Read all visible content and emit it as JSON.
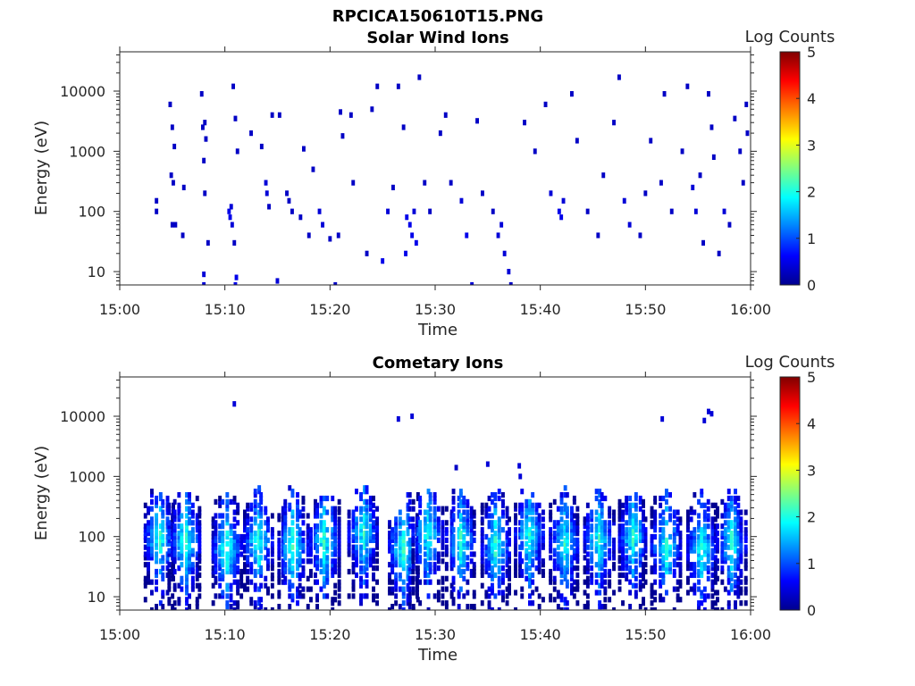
{
  "figure": {
    "title": "RPCICA150610T15.PNG"
  },
  "colors": {
    "colormap": [
      "#00008f",
      "#0000ff",
      "#0080ff",
      "#00ffff",
      "#80ff80",
      "#ffff00",
      "#ff8000",
      "#ff0000",
      "#800000"
    ],
    "axis": "#262626"
  },
  "chart_data": [
    {
      "type": "heatmap",
      "title": "Solar Wind Ions",
      "xlabel": "Time",
      "ylabel": "Energy (eV)",
      "xticks": [
        "15:00",
        "15:10",
        "15:20",
        "15:30",
        "15:40",
        "15:50",
        "16:00"
      ],
      "yscale": "log",
      "yticks": [
        10,
        100,
        1000,
        10000
      ],
      "ylim": [
        6,
        45000
      ],
      "colorbar": {
        "label": "Log Counts",
        "range": [
          0,
          5
        ],
        "ticks": [
          0,
          1,
          2,
          3,
          4,
          5
        ]
      },
      "activity": "sparse",
      "bursts_min": [],
      "points": [
        [
          3.5,
          150,
          0.3
        ],
        [
          3.5,
          100,
          0.3
        ],
        [
          4.8,
          6000,
          0.3
        ],
        [
          5.0,
          2500,
          0.3
        ],
        [
          5.2,
          1200,
          0.3
        ],
        [
          4.9,
          400,
          0.3
        ],
        [
          5.1,
          300,
          0.3
        ],
        [
          5.0,
          60,
          0.3
        ],
        [
          5.3,
          60,
          0.3
        ],
        [
          6.0,
          40,
          0.3
        ],
        [
          6.1,
          250,
          0.3
        ],
        [
          7.8,
          9000,
          0.3
        ],
        [
          7.9,
          2500,
          0.3
        ],
        [
          8.1,
          3000,
          0.3
        ],
        [
          8.2,
          1600,
          0.3
        ],
        [
          8.0,
          700,
          0.3
        ],
        [
          8.1,
          200,
          0.3
        ],
        [
          8.4,
          30,
          0.3
        ],
        [
          8.0,
          6,
          0.4
        ],
        [
          8.0,
          9,
          0.4
        ],
        [
          10.8,
          12000,
          0.3
        ],
        [
          11.0,
          3500,
          0.3
        ],
        [
          11.2,
          1000,
          0.3
        ],
        [
          10.4,
          100,
          0.5
        ],
        [
          10.5,
          80,
          0.5
        ],
        [
          10.6,
          120,
          0.4
        ],
        [
          10.7,
          60,
          0.4
        ],
        [
          10.9,
          30,
          0.3
        ],
        [
          11.1,
          8,
          0.5
        ],
        [
          11.0,
          6,
          0.5
        ],
        [
          12.5,
          2000,
          0.3
        ],
        [
          13.5,
          1200,
          0.3
        ],
        [
          13.9,
          300,
          0.4
        ],
        [
          14.0,
          200,
          0.4
        ],
        [
          14.2,
          120,
          0.3
        ],
        [
          14.5,
          4000,
          0.3
        ],
        [
          15.0,
          7,
          0.4
        ],
        [
          15.2,
          4000,
          0.3
        ],
        [
          15.9,
          200,
          0.3
        ],
        [
          16.1,
          150,
          0.3
        ],
        [
          16.4,
          100,
          0.3
        ],
        [
          17.2,
          80,
          0.3
        ],
        [
          17.5,
          1100,
          0.3
        ],
        [
          18.0,
          40,
          0.3
        ],
        [
          18.4,
          500,
          0.3
        ],
        [
          19.0,
          100,
          0.4
        ],
        [
          19.3,
          60,
          0.4
        ],
        [
          20.0,
          35,
          0.3
        ],
        [
          20.5,
          6,
          0.3
        ],
        [
          20.8,
          40,
          0.3
        ],
        [
          21.0,
          4500,
          0.3
        ],
        [
          21.2,
          1800,
          0.3
        ],
        [
          22.0,
          4000,
          0.3
        ],
        [
          22.2,
          300,
          0.3
        ],
        [
          23.5,
          20,
          0.3
        ],
        [
          24.0,
          5000,
          0.3
        ],
        [
          24.5,
          12000,
          0.3
        ],
        [
          25.0,
          15,
          0.5
        ],
        [
          25.5,
          100,
          0.4
        ],
        [
          26.0,
          250,
          0.3
        ],
        [
          26.5,
          12000,
          0.3
        ],
        [
          27.0,
          2500,
          0.3
        ],
        [
          27.3,
          80,
          0.5
        ],
        [
          27.6,
          60,
          0.5
        ],
        [
          27.8,
          40,
          0.5
        ],
        [
          28.0,
          100,
          0.4
        ],
        [
          28.2,
          30,
          0.5
        ],
        [
          27.2,
          20,
          0.5
        ],
        [
          28.5,
          17000,
          0.3
        ],
        [
          29.0,
          300,
          0.3
        ],
        [
          29.5,
          100,
          0.3
        ],
        [
          30.5,
          2000,
          0.3
        ],
        [
          31.0,
          4000,
          0.3
        ],
        [
          31.5,
          300,
          0.3
        ],
        [
          32.5,
          150,
          0.4
        ],
        [
          33.0,
          40,
          0.5
        ],
        [
          33.5,
          6,
          0.4
        ],
        [
          34.0,
          3200,
          0.3
        ],
        [
          34.5,
          200,
          0.3
        ],
        [
          35.5,
          100,
          0.3
        ],
        [
          36.0,
          40,
          0.4
        ],
        [
          36.3,
          60,
          0.4
        ],
        [
          36.6,
          20,
          0.4
        ],
        [
          37.0,
          10,
          0.4
        ],
        [
          37.2,
          6,
          0.3
        ],
        [
          38.5,
          3000,
          0.3
        ],
        [
          39.5,
          1000,
          0.3
        ],
        [
          40.5,
          6000,
          0.3
        ],
        [
          41.0,
          200,
          0.4
        ],
        [
          41.8,
          100,
          0.5
        ],
        [
          42.0,
          80,
          0.5
        ],
        [
          42.2,
          150,
          0.4
        ],
        [
          43.0,
          9000,
          0.3
        ],
        [
          43.5,
          1500,
          0.3
        ],
        [
          44.5,
          100,
          0.3
        ],
        [
          45.5,
          40,
          0.3
        ],
        [
          46.0,
          400,
          0.3
        ],
        [
          47.5,
          17000,
          0.3
        ],
        [
          47.0,
          3000,
          0.3
        ],
        [
          48.0,
          150,
          0.4
        ],
        [
          48.5,
          60,
          0.4
        ],
        [
          49.5,
          40,
          0.3
        ],
        [
          50.0,
          200,
          0.3
        ],
        [
          50.5,
          1500,
          0.3
        ],
        [
          51.5,
          300,
          0.3
        ],
        [
          51.8,
          9000,
          0.3
        ],
        [
          52.5,
          100,
          0.3
        ],
        [
          53.5,
          1000,
          0.3
        ],
        [
          54.0,
          12000,
          0.3
        ],
        [
          54.5,
          250,
          0.4
        ],
        [
          54.8,
          100,
          0.4
        ],
        [
          55.2,
          400,
          0.3
        ],
        [
          55.5,
          30,
          0.3
        ],
        [
          56.0,
          9000,
          0.3
        ],
        [
          56.3,
          2500,
          0.3
        ],
        [
          56.5,
          800,
          0.3
        ],
        [
          57.0,
          20,
          0.3
        ],
        [
          57.5,
          100,
          0.4
        ],
        [
          58.0,
          60,
          0.3
        ],
        [
          58.5,
          3500,
          0.3
        ],
        [
          59.0,
          1000,
          0.3
        ],
        [
          59.3,
          300,
          0.3
        ],
        [
          59.6,
          6000,
          0.3
        ],
        [
          59.7,
          2000,
          0.3
        ]
      ]
    },
    {
      "type": "heatmap",
      "title": "Cometary Ions",
      "xlabel": "Time",
      "ylabel": "Energy (eV)",
      "xticks": [
        "15:00",
        "15:10",
        "15:20",
        "15:30",
        "15:40",
        "15:50",
        "16:00"
      ],
      "yscale": "log",
      "yticks": [
        10,
        100,
        1000,
        10000
      ],
      "ylim": [
        6,
        45000
      ],
      "colorbar": {
        "label": "Log Counts",
        "range": [
          0,
          5
        ],
        "ticks": [
          0,
          1,
          2,
          3,
          4,
          5
        ]
      },
      "activity": "periodic bursts",
      "bursts_min": [
        3.8,
        6.3,
        10.2,
        13.2,
        16.5,
        19.5,
        23.2,
        27.0,
        29.3,
        32.5,
        35.8,
        39.0,
        42.3,
        45.6,
        48.8,
        52.0,
        55.4,
        58.2
      ],
      "points": [
        [
          10.9,
          16000,
          0.4
        ],
        [
          26.5,
          9000,
          0.4
        ],
        [
          27.8,
          10000,
          0.4
        ],
        [
          32.0,
          1400,
          0.3
        ],
        [
          35.0,
          1600,
          0.4
        ],
        [
          38.0,
          1500,
          0.4
        ],
        [
          38.1,
          1000,
          0.4
        ],
        [
          51.6,
          9000,
          0.4
        ],
        [
          55.6,
          8500,
          0.4
        ],
        [
          56.0,
          12000,
          0.4
        ],
        [
          56.3,
          11000,
          0.4
        ]
      ]
    }
  ]
}
